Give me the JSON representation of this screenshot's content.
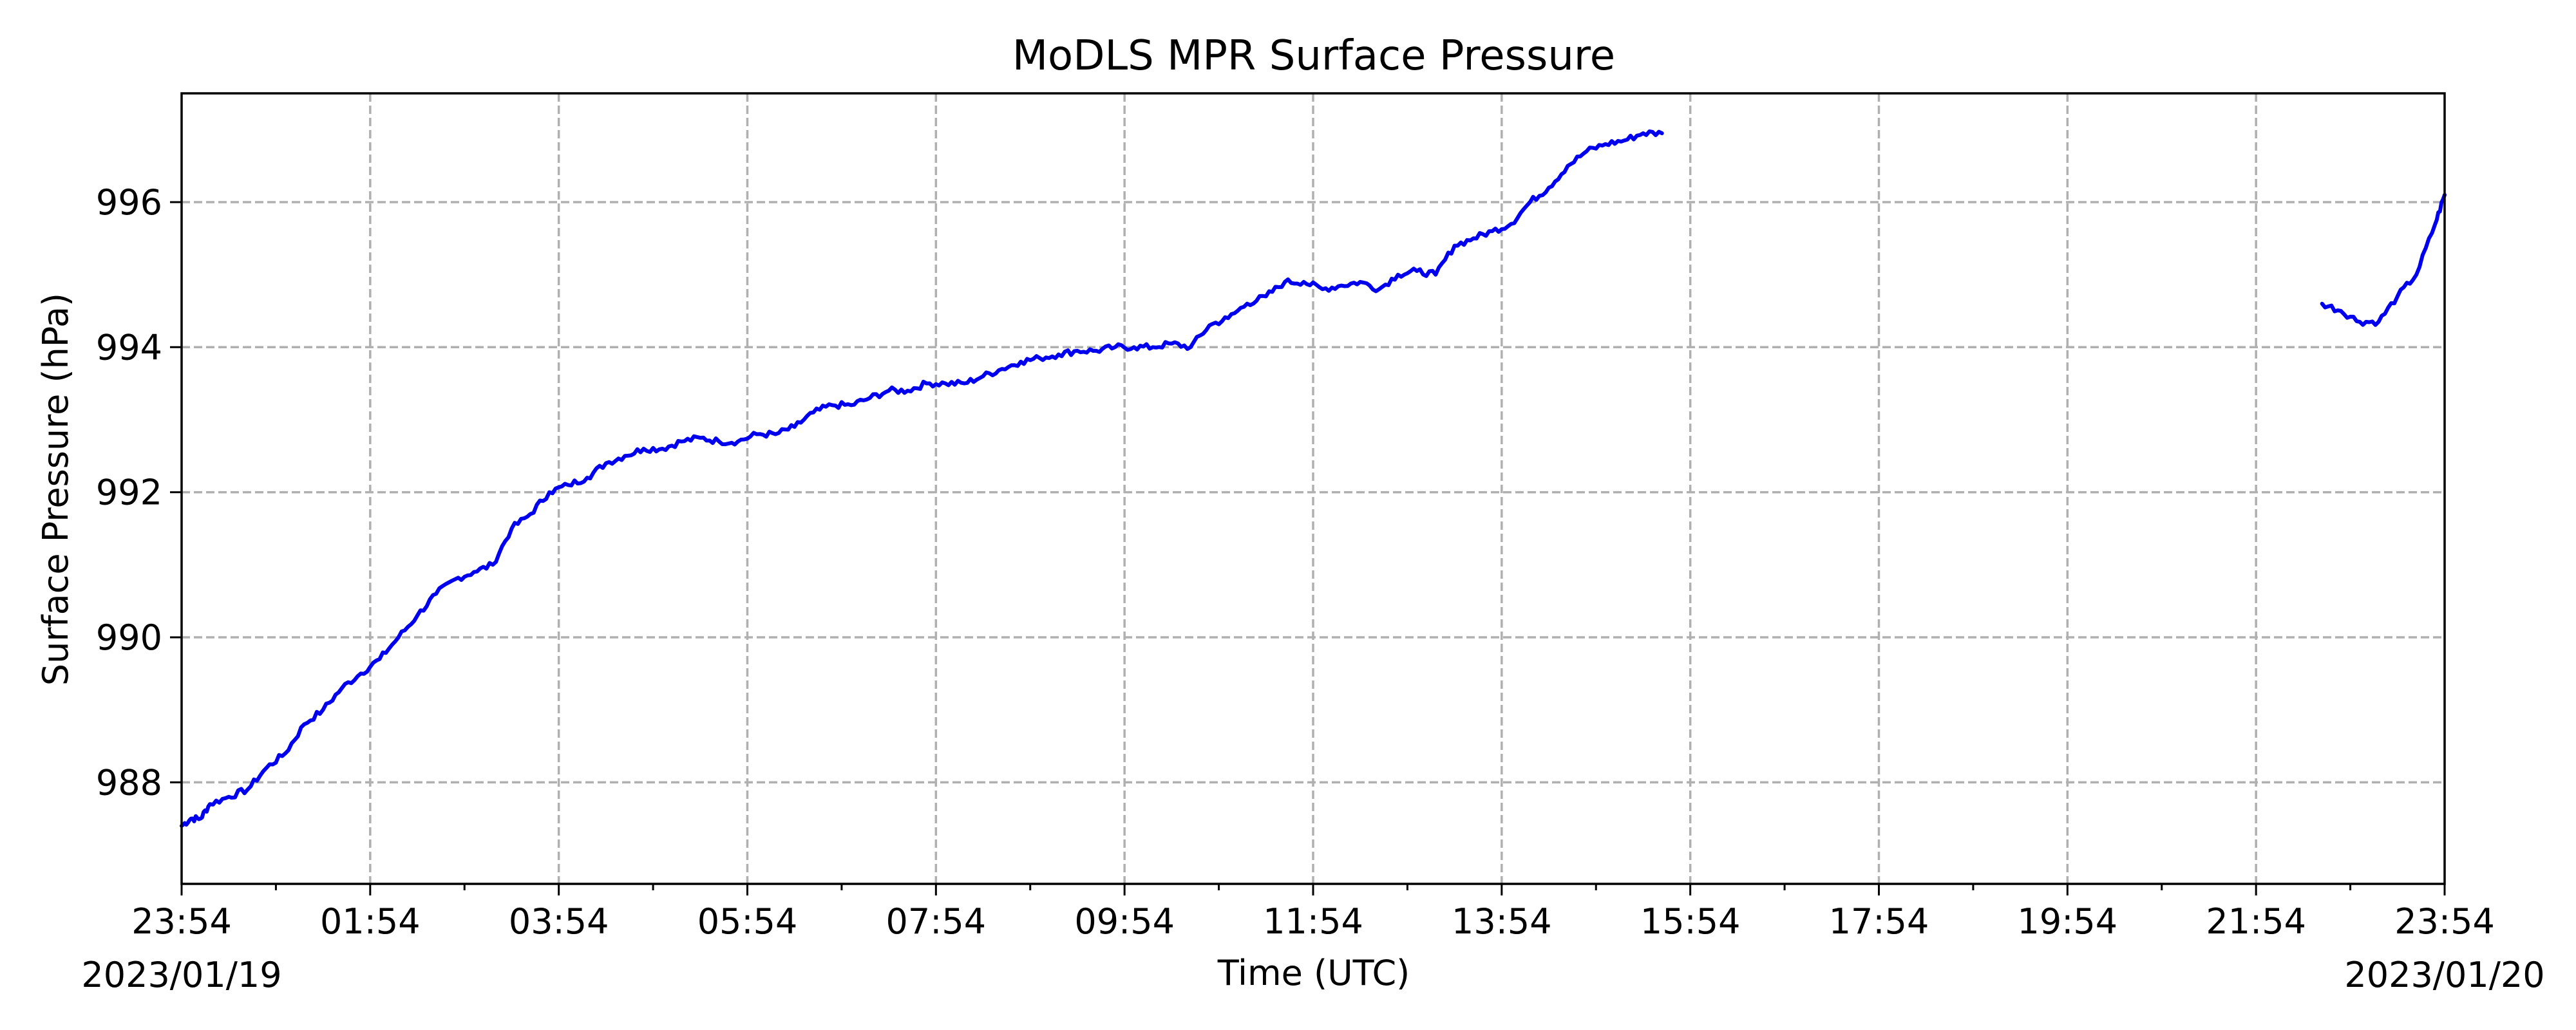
{
  "chart_data": {
    "type": "line",
    "title": "MoDLS MPR Surface Pressure",
    "xlabel": "Time (UTC)",
    "ylabel": "Surface Pressure (hPa)",
    "grid": true,
    "line_color": "#0000ee",
    "xlim": [
      "2023-01-19 23:54",
      "2023-01-20 23:54"
    ],
    "ylim": [
      986.6,
      997.5
    ],
    "x_ticks": [
      "23:54",
      "01:54",
      "03:54",
      "05:54",
      "07:54",
      "09:54",
      "11:54",
      "13:54",
      "15:54",
      "17:54",
      "19:54",
      "21:54",
      "23:54"
    ],
    "x_date_left": "2023/01/19",
    "x_date_right": "2023/01/20",
    "y_ticks": [
      988,
      990,
      992,
      994,
      996
    ],
    "y_tick_labels": [
      "988",
      "990",
      "992",
      "994",
      "996"
    ],
    "series": [
      {
        "segments": [
          [
            [
              "2023-01-19 23:54",
              987.4
            ],
            [
              "2023-01-20 00:00",
              987.5
            ],
            [
              "2023-01-20 00:06",
              987.5
            ],
            [
              "2023-01-20 00:12",
              987.7
            ],
            [
              "2023-01-20 00:24",
              987.8
            ],
            [
              "2023-01-20 00:36",
              987.9
            ],
            [
              "2023-01-20 00:48",
              988.2
            ],
            [
              "2023-01-20 01:00",
              988.4
            ],
            [
              "2023-01-20 01:12",
              988.8
            ],
            [
              "2023-01-20 01:24",
              989.0
            ],
            [
              "2023-01-20 01:36",
              989.3
            ],
            [
              "2023-01-20 01:48",
              989.5
            ],
            [
              "2023-01-20 02:00",
              989.7
            ],
            [
              "2023-01-20 02:12",
              990.0
            ],
            [
              "2023-01-20 02:24",
              990.3
            ],
            [
              "2023-01-20 02:36",
              990.6
            ],
            [
              "2023-01-20 02:48",
              990.8
            ],
            [
              "2023-01-20 03:00",
              990.9
            ],
            [
              "2023-01-20 03:12",
              991.0
            ],
            [
              "2023-01-20 03:24",
              991.5
            ],
            [
              "2023-01-20 03:36",
              991.7
            ],
            [
              "2023-01-20 03:48",
              992.0
            ],
            [
              "2023-01-20 04:00",
              992.1
            ],
            [
              "2023-01-20 04:12",
              992.2
            ],
            [
              "2023-01-20 04:24",
              992.4
            ],
            [
              "2023-01-20 04:36",
              992.5
            ],
            [
              "2023-01-20 04:48",
              992.6
            ],
            [
              "2023-01-20 05:00",
              992.6
            ],
            [
              "2023-01-20 05:12",
              992.7
            ],
            [
              "2023-01-20 05:24",
              992.75
            ],
            [
              "2023-01-20 05:36",
              992.7
            ],
            [
              "2023-01-20 05:48",
              992.7
            ],
            [
              "2023-01-20 06:00",
              992.8
            ],
            [
              "2023-01-20 06:12",
              992.8
            ],
            [
              "2023-01-20 06:24",
              992.9
            ],
            [
              "2023-01-20 06:36",
              993.1
            ],
            [
              "2023-01-20 06:48",
              993.2
            ],
            [
              "2023-01-20 07:00",
              993.2
            ],
            [
              "2023-01-20 07:12",
              993.3
            ],
            [
              "2023-01-20 07:24",
              993.4
            ],
            [
              "2023-01-20 07:36",
              993.4
            ],
            [
              "2023-01-20 07:48",
              993.5
            ],
            [
              "2023-01-20 08:00",
              993.5
            ],
            [
              "2023-01-20 08:12",
              993.5
            ],
            [
              "2023-01-20 08:24",
              993.6
            ],
            [
              "2023-01-20 08:36",
              993.7
            ],
            [
              "2023-01-20 08:48",
              993.8
            ],
            [
              "2023-01-20 09:00",
              993.85
            ],
            [
              "2023-01-20 09:12",
              993.9
            ],
            [
              "2023-01-20 09:24",
              993.95
            ],
            [
              "2023-01-20 09:36",
              993.95
            ],
            [
              "2023-01-20 09:48",
              994.0
            ],
            [
              "2023-01-20 10:00",
              994.0
            ],
            [
              "2023-01-20 10:12",
              994.0
            ],
            [
              "2023-01-20 10:24",
              994.05
            ],
            [
              "2023-01-20 10:36",
              994.0
            ],
            [
              "2023-01-20 10:48",
              994.3
            ],
            [
              "2023-01-20 11:00",
              994.4
            ],
            [
              "2023-01-20 11:12",
              994.6
            ],
            [
              "2023-01-20 11:24",
              994.7
            ],
            [
              "2023-01-20 11:36",
              994.9
            ],
            [
              "2023-01-20 11:48",
              994.9
            ],
            [
              "2023-01-20 12:00",
              994.8
            ],
            [
              "2023-01-20 12:12",
              994.85
            ],
            [
              "2023-01-20 12:24",
              994.9
            ],
            [
              "2023-01-20 12:36",
              994.8
            ],
            [
              "2023-01-20 12:48",
              995.0
            ],
            [
              "2023-01-20 13:00",
              995.05
            ],
            [
              "2023-01-20 13:12",
              995.0
            ],
            [
              "2023-01-20 13:24",
              995.4
            ],
            [
              "2023-01-20 13:36",
              995.5
            ],
            [
              "2023-01-20 13:48",
              995.6
            ],
            [
              "2023-01-20 14:00",
              995.7
            ],
            [
              "2023-01-20 14:12",
              996.0
            ],
            [
              "2023-01-20 14:24",
              996.2
            ],
            [
              "2023-01-20 14:36",
              996.5
            ],
            [
              "2023-01-20 14:48",
              996.7
            ],
            [
              "2023-01-20 15:00",
              996.8
            ],
            [
              "2023-01-20 15:12",
              996.85
            ],
            [
              "2023-01-20 15:24",
              996.95
            ],
            [
              "2023-01-20 15:36",
              996.95
            ]
          ],
          [
            [
              "2023-01-20 22:36",
              994.6
            ],
            [
              "2023-01-20 22:48",
              994.5
            ],
            [
              "2023-01-20 23:00",
              994.35
            ],
            [
              "2023-01-20 23:12",
              994.35
            ],
            [
              "2023-01-20 23:24",
              994.7
            ],
            [
              "2023-01-20 23:36",
              995.0
            ],
            [
              "2023-01-20 23:48",
              995.7
            ],
            [
              "2023-01-20 23:54",
              996.1
            ]
          ]
        ]
      }
    ]
  }
}
